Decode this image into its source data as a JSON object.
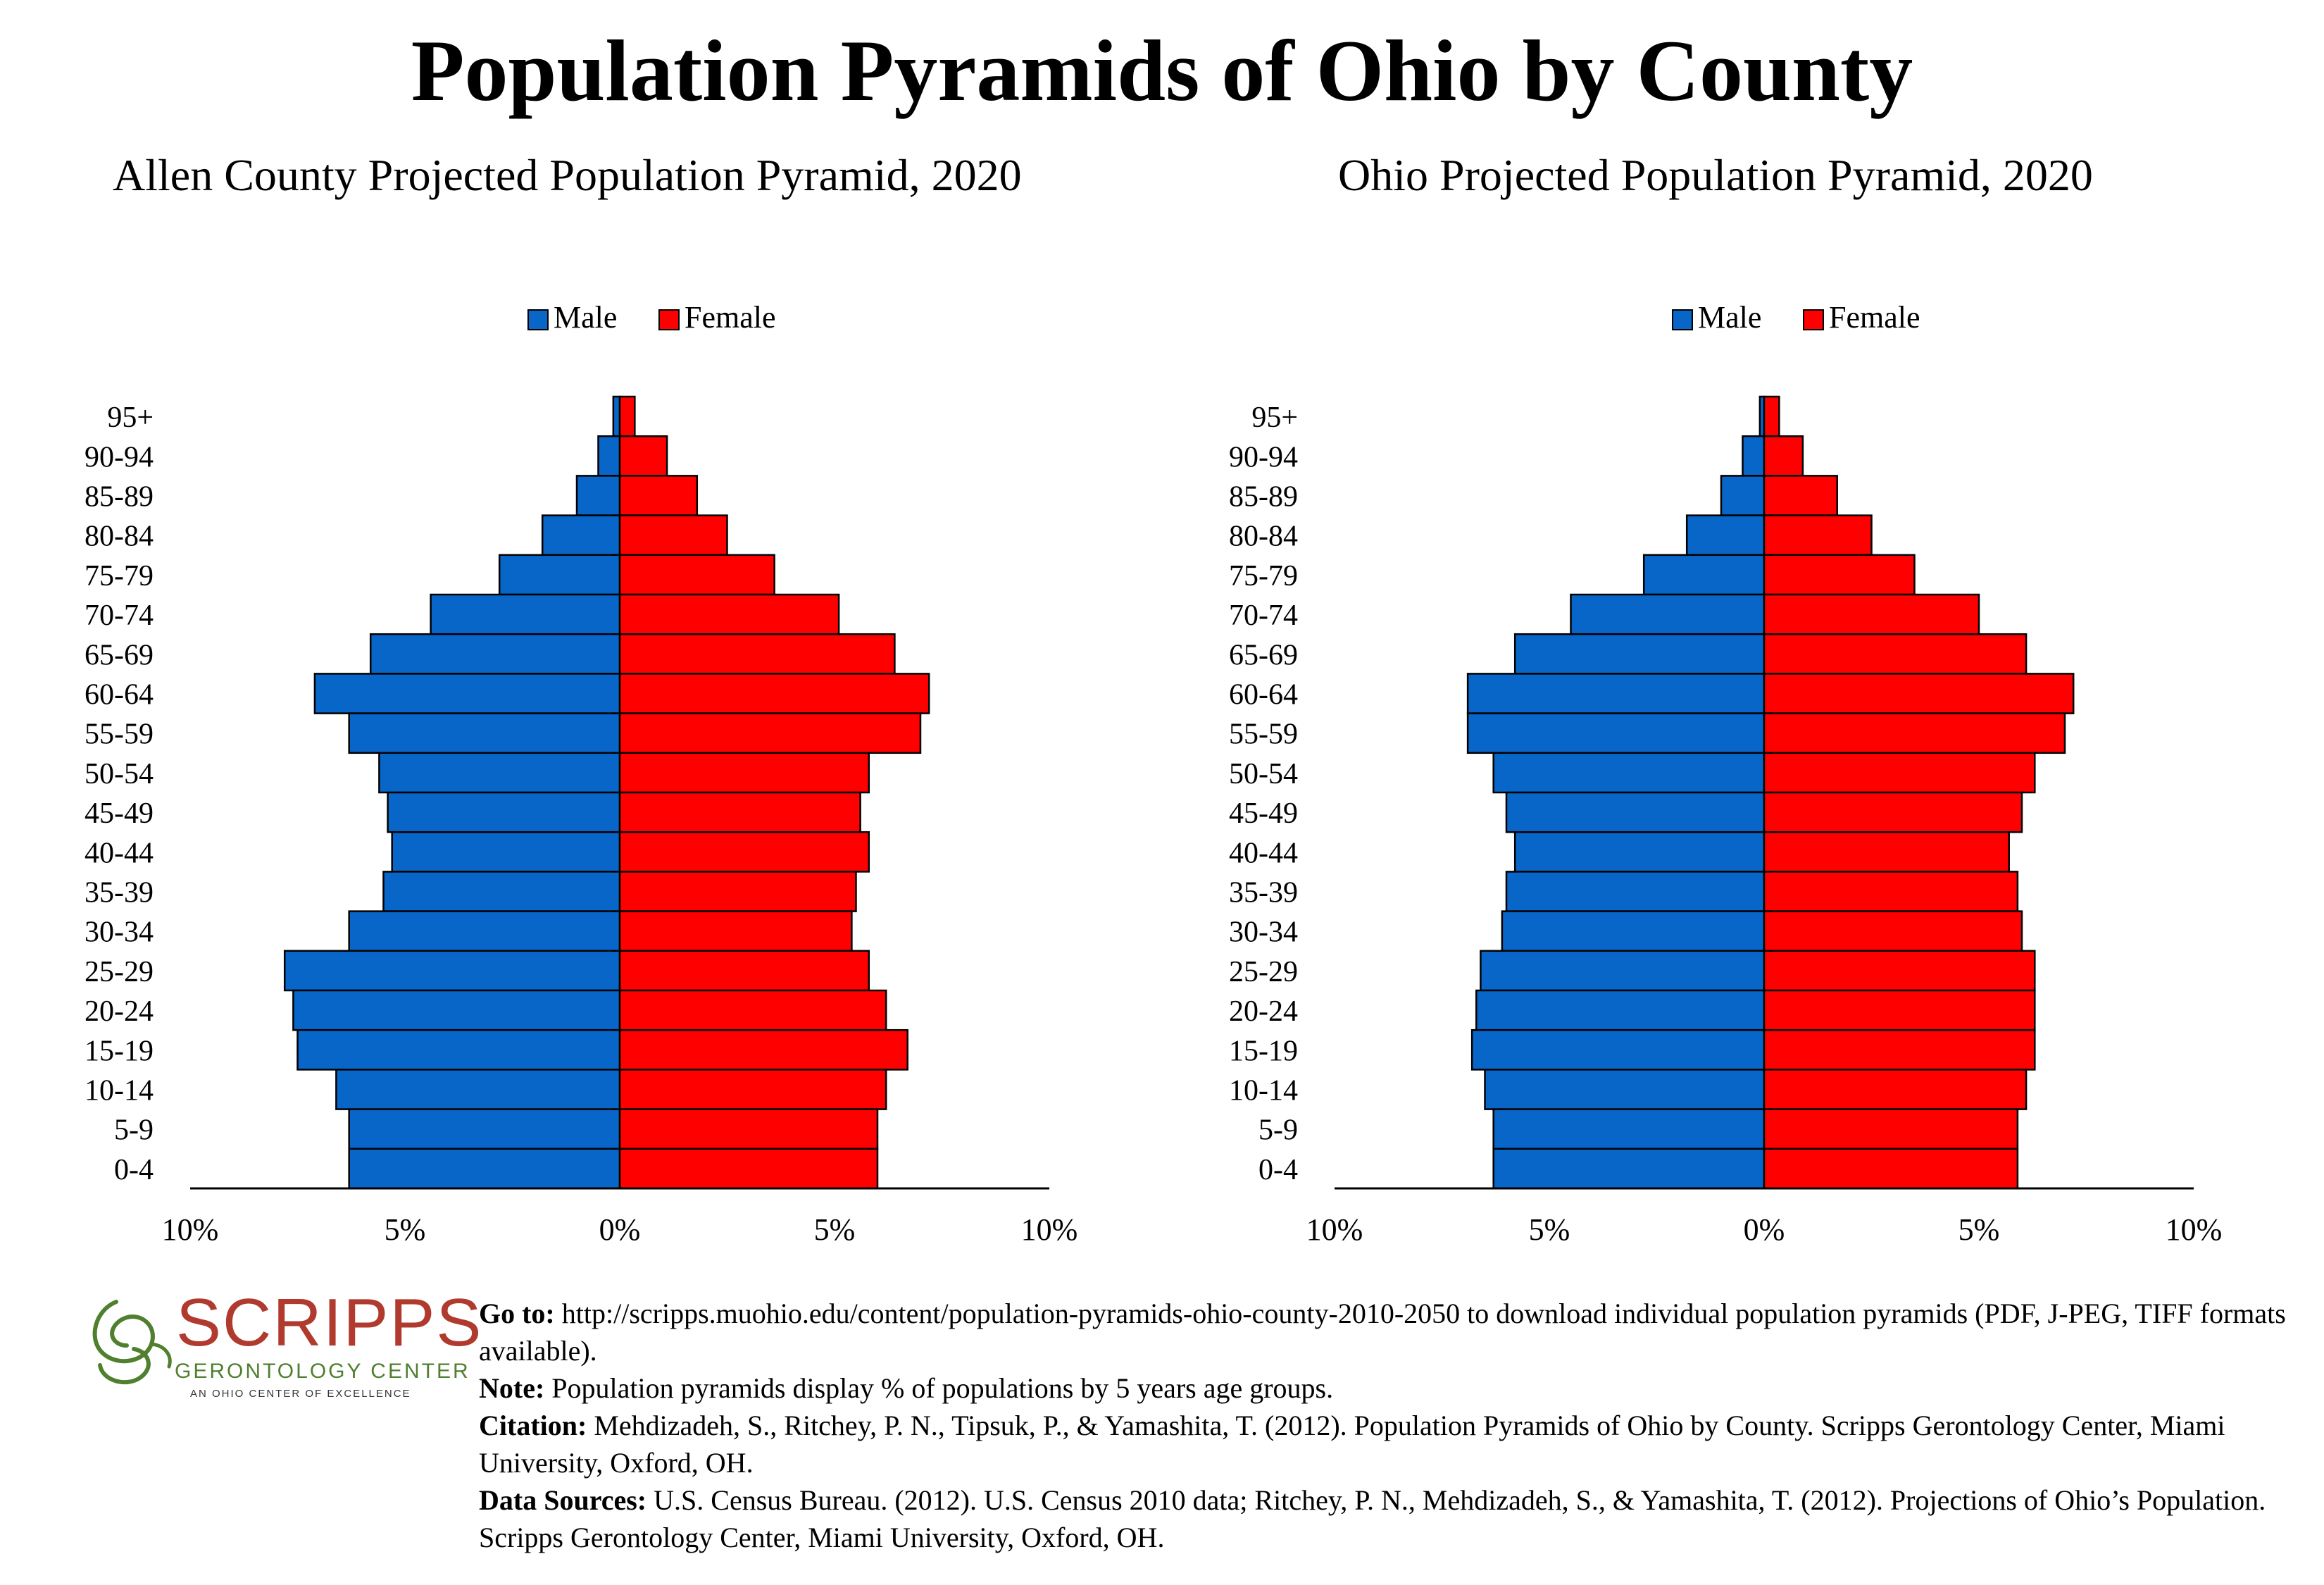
{
  "title": "Population Pyramids of Ohio by County",
  "legend": {
    "male": "Male",
    "female": "Female"
  },
  "colors": {
    "male": "#0866c8",
    "female": "#ff0000",
    "outline": "#000000"
  },
  "chart_data": [
    {
      "type": "bar",
      "orientation": "horizontal-pyramid",
      "title": "Allen County Projected Population Pyramid, 2020",
      "categories": [
        "95+",
        "90-94",
        "85-89",
        "80-84",
        "75-79",
        "70-74",
        "65-69",
        "60-64",
        "55-59",
        "50-54",
        "45-49",
        "40-44",
        "35-39",
        "30-34",
        "25-29",
        "20-24",
        "15-19",
        "10-14",
        "5-9",
        "0-4"
      ],
      "series": [
        {
          "name": "Male",
          "values": [
            0.15,
            0.5,
            1.0,
            1.8,
            2.8,
            4.4,
            5.8,
            7.1,
            6.3,
            5.6,
            5.4,
            5.3,
            5.5,
            6.3,
            7.8,
            7.6,
            7.5,
            6.6,
            6.3,
            6.3
          ]
        },
        {
          "name": "Female",
          "values": [
            0.35,
            1.1,
            1.8,
            2.5,
            3.6,
            5.1,
            6.4,
            7.2,
            7.0,
            5.8,
            5.6,
            5.8,
            5.5,
            5.4,
            5.8,
            6.2,
            6.7,
            6.2,
            6.0,
            6.0
          ]
        }
      ],
      "xlim": [
        -10,
        10
      ],
      "xticks": [
        "10%",
        "5%",
        "0%",
        "5%",
        "10%"
      ],
      "legend_position": "top-center"
    },
    {
      "type": "bar",
      "orientation": "horizontal-pyramid",
      "title": "Ohio Projected Population Pyramid, 2020",
      "categories": [
        "95+",
        "90-94",
        "85-89",
        "80-84",
        "75-79",
        "70-74",
        "65-69",
        "60-64",
        "55-59",
        "50-54",
        "45-49",
        "40-44",
        "35-39",
        "30-34",
        "25-29",
        "20-24",
        "15-19",
        "10-14",
        "5-9",
        "0-4"
      ],
      "series": [
        {
          "name": "Male",
          "values": [
            0.1,
            0.5,
            1.0,
            1.8,
            2.8,
            4.5,
            5.8,
            6.9,
            6.9,
            6.3,
            6.0,
            5.8,
            6.0,
            6.1,
            6.6,
            6.7,
            6.8,
            6.5,
            6.3,
            6.3
          ]
        },
        {
          "name": "Female",
          "values": [
            0.35,
            0.9,
            1.7,
            2.5,
            3.5,
            5.0,
            6.1,
            7.2,
            7.0,
            6.3,
            6.0,
            5.7,
            5.9,
            6.0,
            6.3,
            6.3,
            6.3,
            6.1,
            5.9,
            5.9
          ]
        }
      ],
      "xlim": [
        -10,
        10
      ],
      "xticks": [
        "10%",
        "5%",
        "0%",
        "5%",
        "10%"
      ],
      "legend_position": "top-center"
    }
  ],
  "logo": {
    "word": "SCRIPPS",
    "line1": "GERONTOLOGY CENTER",
    "line2": "AN OHIO CENTER OF EXCELLENCE",
    "icon": "spiral-swirl-icon"
  },
  "notes": {
    "goto_label": "Go to:",
    "goto_text": "http://scripps.muohio.edu/content/population-pyramids-ohio-county-2010-2050 to download individual population pyramids (PDF, J-PEG, TIFF formats available).",
    "note_label": "Note:",
    "note_text": "Population pyramids display % of populations by 5 years age groups.",
    "citation_label": "Citation:",
    "citation_text": "Mehdizadeh, S., Ritchey, P. N., Tipsuk, P., & Yamashita, T. (2012). Population Pyramids of Ohio by County. Scripps Gerontology Center, Miami University, Oxford, OH.",
    "sources_label": "Data Sources:",
    "sources_text": "U.S. Census Bureau. (2012). U.S. Census 2010 data; Ritchey, P. N., Mehdizadeh, S., & Yamashita, T. (2012). Projections of Ohio’s Population. Scripps Gerontology Center, Miami University, Oxford, OH."
  }
}
